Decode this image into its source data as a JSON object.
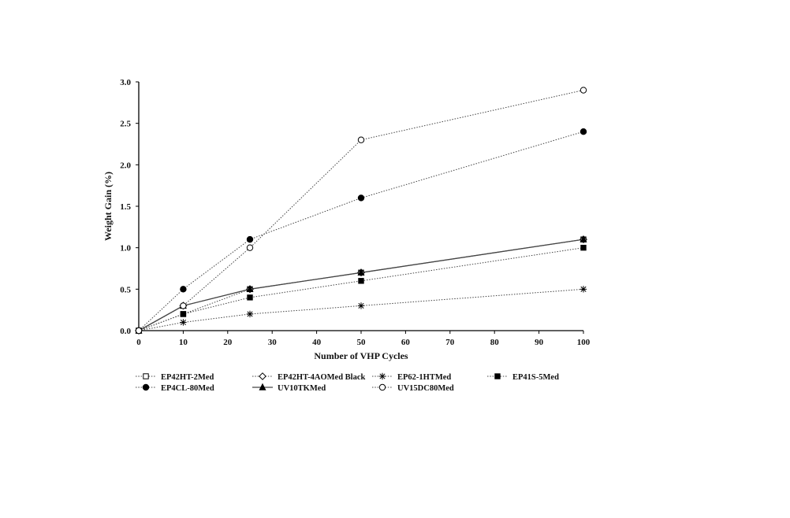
{
  "chart_data": {
    "type": "line",
    "title": "",
    "xlabel": "Number of VHP Cycles",
    "ylabel": "Weight Gain (%)",
    "xlim": [
      0,
      100
    ],
    "ylim": [
      0,
      3.0
    ],
    "x_ticks": [
      0,
      10,
      20,
      30,
      40,
      50,
      60,
      70,
      80,
      90,
      100
    ],
    "y_ticks": [
      0.0,
      0.5,
      1.0,
      1.5,
      2.0,
      2.5,
      3.0
    ],
    "grid": false,
    "legend_position": "bottom",
    "series": [
      {
        "name": "EP42HT-2Med",
        "marker": "square-open",
        "style": "dotted",
        "x": [
          0,
          10,
          25,
          50,
          100
        ],
        "y": [
          0.0,
          0.2,
          0.5,
          0.7,
          1.1
        ]
      },
      {
        "name": "EP42HT-4AOMed Black",
        "marker": "diamond-open",
        "style": "dotted",
        "x": [
          0,
          10,
          25,
          50,
          100
        ],
        "y": [
          0.0,
          0.3,
          0.5,
          0.7,
          1.1
        ]
      },
      {
        "name": "EP62-1HTMed",
        "marker": "star",
        "style": "dotted",
        "x": [
          0,
          10,
          25,
          50,
          100
        ],
        "y": [
          0.0,
          0.1,
          0.2,
          0.3,
          0.5
        ]
      },
      {
        "name": "EP41S-5Med",
        "marker": "square-filled",
        "style": "dotted",
        "x": [
          0,
          10,
          25,
          50,
          100
        ],
        "y": [
          0.0,
          0.2,
          0.4,
          0.6,
          1.0
        ]
      },
      {
        "name": "EP4CL-80Med",
        "marker": "circle-filled",
        "style": "dotted",
        "x": [
          0,
          10,
          25,
          50,
          100
        ],
        "y": [
          0.0,
          0.5,
          1.1,
          1.6,
          2.4
        ]
      },
      {
        "name": "UV10TKMed",
        "marker": "triangle-filled",
        "style": "solid",
        "x": [
          0,
          10,
          25,
          50,
          100
        ],
        "y": [
          0.0,
          0.3,
          0.5,
          0.7,
          1.1
        ]
      },
      {
        "name": "UV15DC80Med",
        "marker": "circle-open",
        "style": "dotted",
        "x": [
          0,
          10,
          25,
          50,
          100
        ],
        "y": [
          0.0,
          0.3,
          1.0,
          2.3,
          2.9
        ]
      }
    ]
  }
}
